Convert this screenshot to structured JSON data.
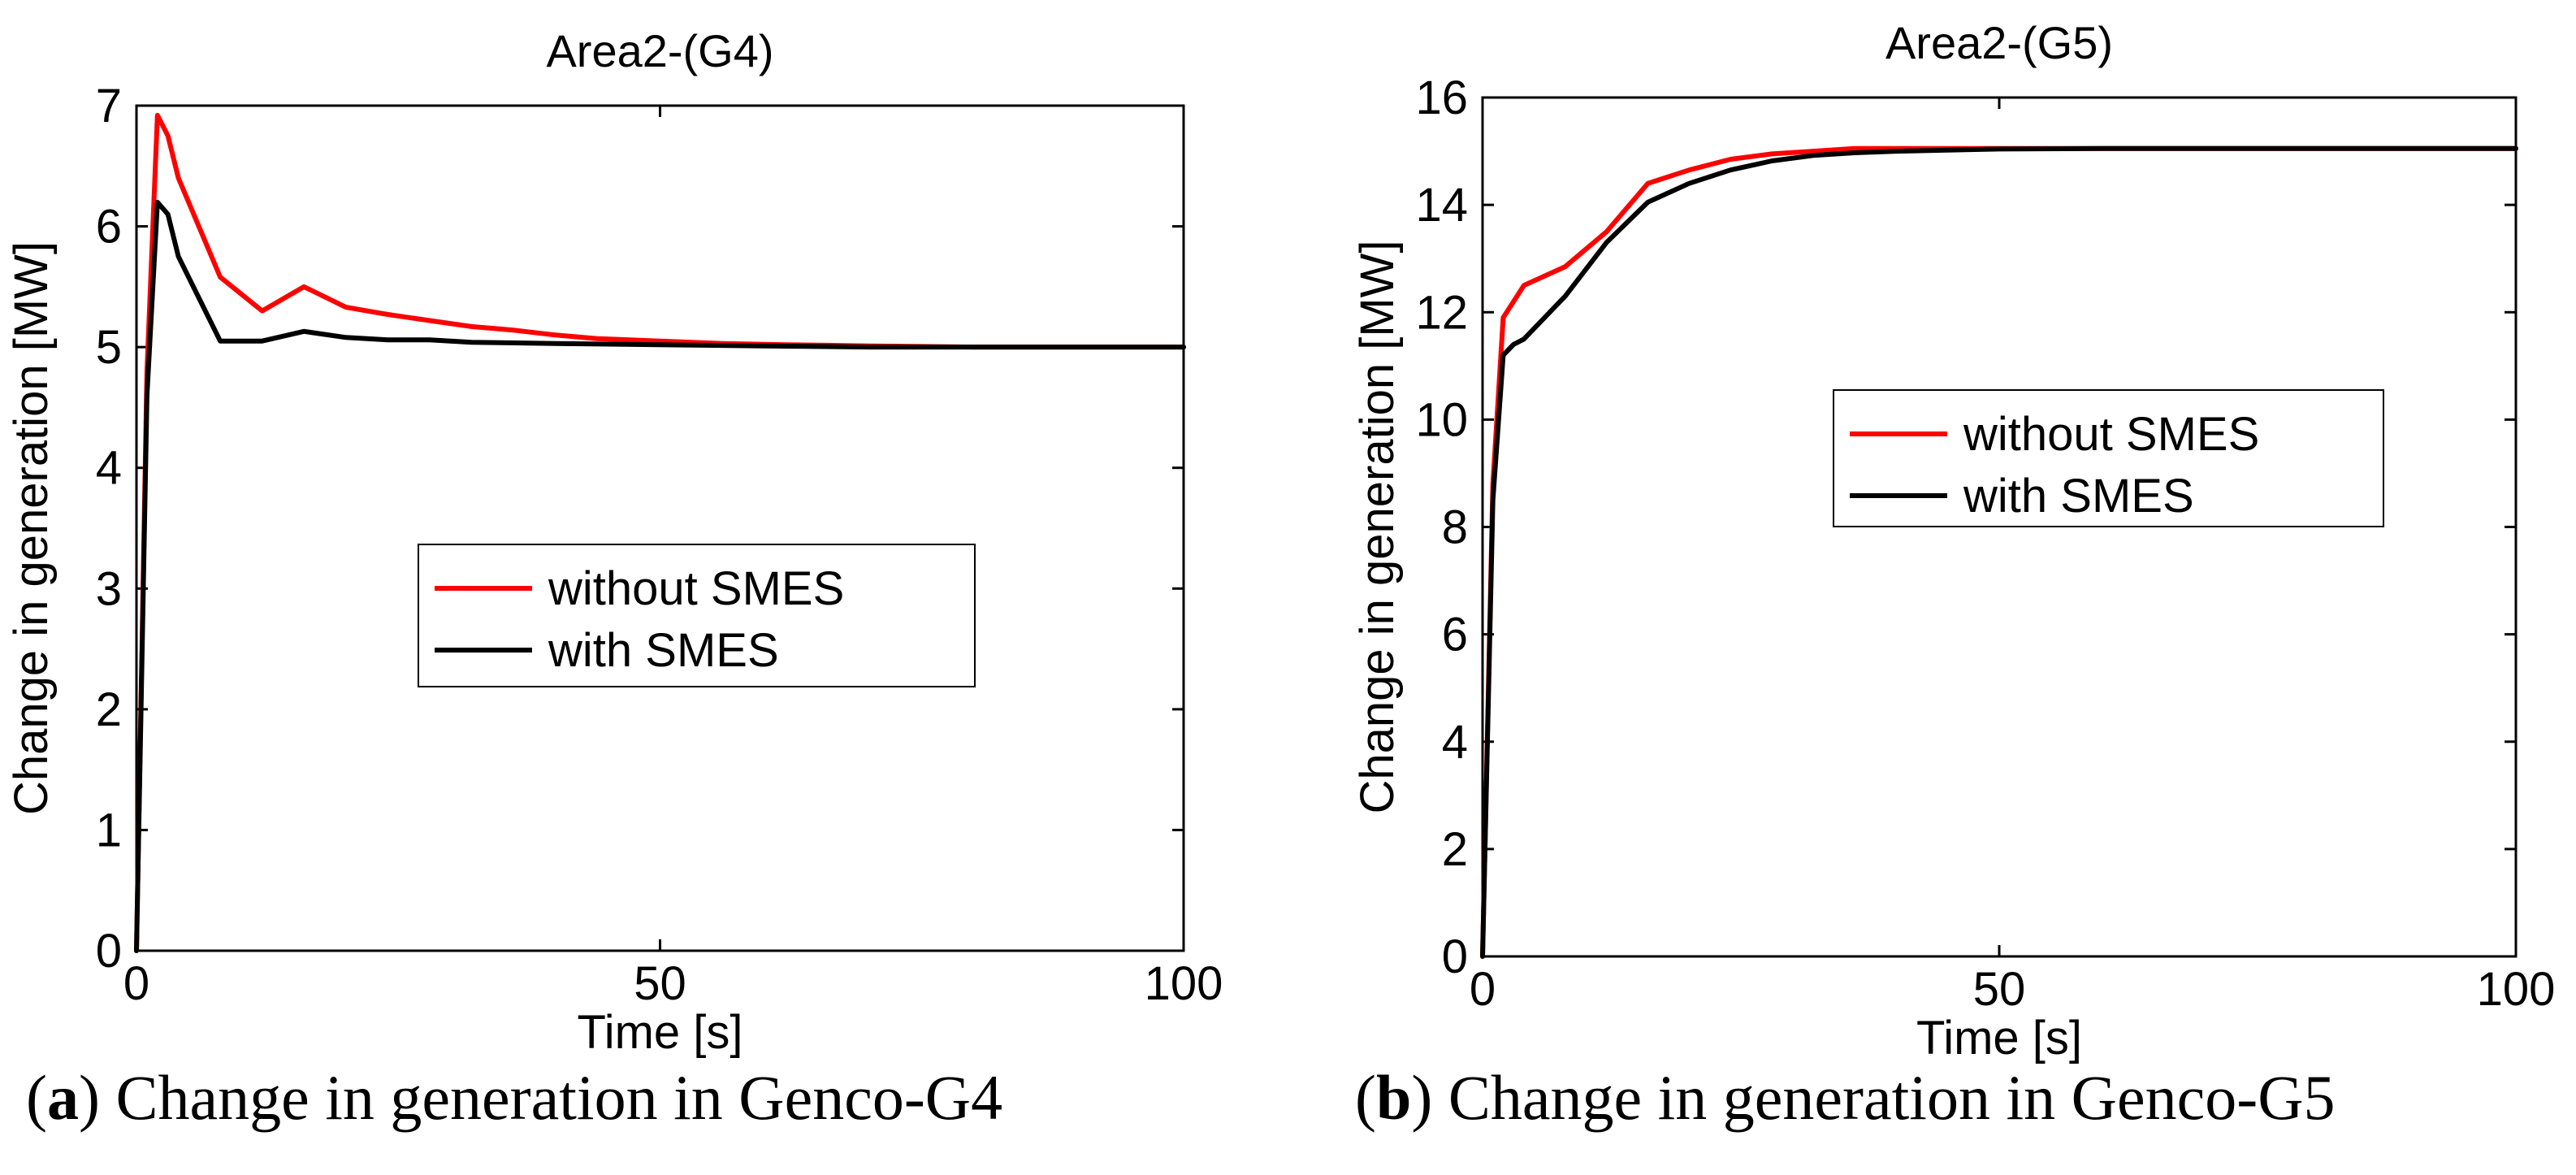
{
  "figure": {
    "captions": [
      {
        "label": "a",
        "text": "Change in generation in Genco-G4"
      },
      {
        "label": "b",
        "text": "Change in generation in Genco-G5"
      }
    ]
  },
  "chart_data": [
    {
      "type": "line",
      "title": "Area2-(G4)",
      "xlabel": "Time [s]",
      "ylabel": "Change in generation [MW]",
      "xlim": [
        0,
        100
      ],
      "ylim": [
        0,
        7
      ],
      "xticks": [
        0,
        50,
        100
      ],
      "yticks": [
        0,
        1,
        2,
        3,
        4,
        5,
        6,
        7
      ],
      "grid": false,
      "legend": "center",
      "series": [
        {
          "name": "without SMES",
          "color": "#ff0000",
          "x": [
            0,
            1,
            2,
            3,
            4,
            8,
            12,
            16,
            20,
            24,
            28,
            32,
            36,
            40,
            44,
            50,
            56,
            62,
            70,
            80,
            90,
            100
          ],
          "y": [
            0,
            4.8,
            6.92,
            6.75,
            6.4,
            5.58,
            5.3,
            5.5,
            5.33,
            5.27,
            5.22,
            5.17,
            5.14,
            5.1,
            5.07,
            5.05,
            5.03,
            5.02,
            5.01,
            5.0,
            5.0,
            5.0
          ]
        },
        {
          "name": "with SMES",
          "color": "#000000",
          "x": [
            0,
            1,
            2,
            3,
            4,
            8,
            12,
            16,
            20,
            24,
            28,
            32,
            40,
            50,
            60,
            70,
            100
          ],
          "y": [
            0,
            4.6,
            6.2,
            6.1,
            5.75,
            5.05,
            5.05,
            5.13,
            5.08,
            5.06,
            5.06,
            5.04,
            5.03,
            5.02,
            5.01,
            5.0,
            5.0
          ]
        }
      ]
    },
    {
      "type": "line",
      "title": "Area2-(G5)",
      "xlabel": "Time [s]",
      "ylabel": "Change in generation [MW]",
      "xlim": [
        0,
        100
      ],
      "ylim": [
        0,
        16
      ],
      "xticks": [
        0,
        50,
        100
      ],
      "yticks": [
        0,
        2,
        4,
        6,
        8,
        10,
        12,
        14,
        16
      ],
      "grid": false,
      "legend": "center-right",
      "series": [
        {
          "name": "without SMES",
          "color": "#ff0000",
          "x": [
            0,
            1,
            2,
            3,
            4,
            8,
            12,
            16,
            20,
            24,
            28,
            32,
            36,
            40,
            50,
            60,
            100
          ],
          "y": [
            0,
            8.8,
            11.9,
            12.2,
            12.5,
            12.85,
            13.5,
            14.4,
            14.65,
            14.85,
            14.95,
            15.0,
            15.05,
            15.05,
            15.05,
            15.05,
            15.05
          ]
        },
        {
          "name": "with SMES",
          "color": "#000000",
          "x": [
            0,
            1,
            2,
            3,
            4,
            8,
            12,
            16,
            20,
            24,
            28,
            32,
            36,
            40,
            50,
            60,
            100
          ],
          "y": [
            0,
            8.5,
            11.2,
            11.4,
            11.5,
            12.3,
            13.3,
            14.05,
            14.4,
            14.65,
            14.82,
            14.92,
            14.97,
            15.0,
            15.04,
            15.05,
            15.05
          ]
        }
      ]
    }
  ]
}
